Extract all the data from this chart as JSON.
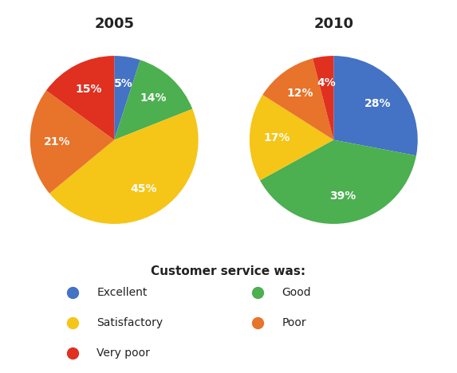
{
  "chart_2005": {
    "title": "2005",
    "values": [
      5,
      14,
      45,
      21,
      15
    ],
    "colors": [
      "#4472C4",
      "#4CAF50",
      "#F5C518",
      "#E8732A",
      "#E03020"
    ],
    "startangle": 90,
    "counterclock": false
  },
  "chart_2010": {
    "title": "2010",
    "values": [
      28,
      39,
      17,
      12,
      4
    ],
    "colors": [
      "#4472C4",
      "#4CAF50",
      "#F5C518",
      "#E8732A",
      "#E03020"
    ],
    "startangle": 90,
    "counterclock": false
  },
  "legend_title": "Customer service was:",
  "col1_items": [
    [
      "Excellent",
      "#4472C4"
    ],
    [
      "Satisfactory",
      "#F5C518"
    ],
    [
      "Very poor",
      "#E03020"
    ]
  ],
  "col2_items": [
    [
      "Good",
      "#4CAF50"
    ],
    [
      "Poor",
      "#E8732A"
    ]
  ],
  "background_color": "#FFFFFF",
  "text_color_pct": "#FFFFFF",
  "pct_fontsize": 10,
  "title_fontsize": 13,
  "legend_title_fontsize": 11,
  "legend_fontsize": 10
}
